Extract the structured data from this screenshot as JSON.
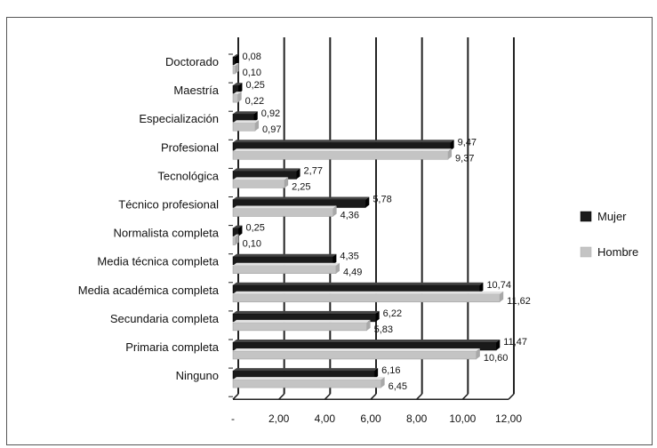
{
  "chart_data": {
    "type": "bar",
    "orientation": "horizontal",
    "categories": [
      "Doctorado",
      "Maestría",
      "Especialización",
      "Profesional",
      "Tecnológica",
      "Técnico profesional",
      "Normalista completa",
      "Media técnica completa",
      "Media académica completa",
      "Secundaria completa",
      "Primaria completa",
      "Ninguno"
    ],
    "series": [
      {
        "name": "Mujer",
        "color": "#1a1a1a",
        "values": [
          0.08,
          0.25,
          0.92,
          9.47,
          2.77,
          5.78,
          0.25,
          4.35,
          10.74,
          6.22,
          11.47,
          6.16
        ],
        "labels": [
          "0,08",
          "0,25",
          "0,92",
          "9,47",
          "2,77",
          "5,78",
          "0,25",
          "4,35",
          "10,74",
          "6,22",
          "11,47",
          "6,16"
        ]
      },
      {
        "name": "Hombre",
        "color": "#c4c4c4",
        "values": [
          0.1,
          0.22,
          0.97,
          9.37,
          2.25,
          4.36,
          0.1,
          4.49,
          11.62,
          5.83,
          10.6,
          6.45
        ],
        "labels": [
          "0,10",
          "0,22",
          "0,97",
          "9,37",
          "2,25",
          "4,36",
          "0,10",
          "4,49",
          "11,62",
          "5,83",
          "10,60",
          "6,45"
        ]
      }
    ],
    "x_ticks": [
      "-",
      "2,00",
      "4,00",
      "6,00",
      "8,00",
      "10,00",
      "12,00"
    ],
    "xlim": [
      0,
      12
    ],
    "grid": true,
    "legend_position": "right"
  }
}
